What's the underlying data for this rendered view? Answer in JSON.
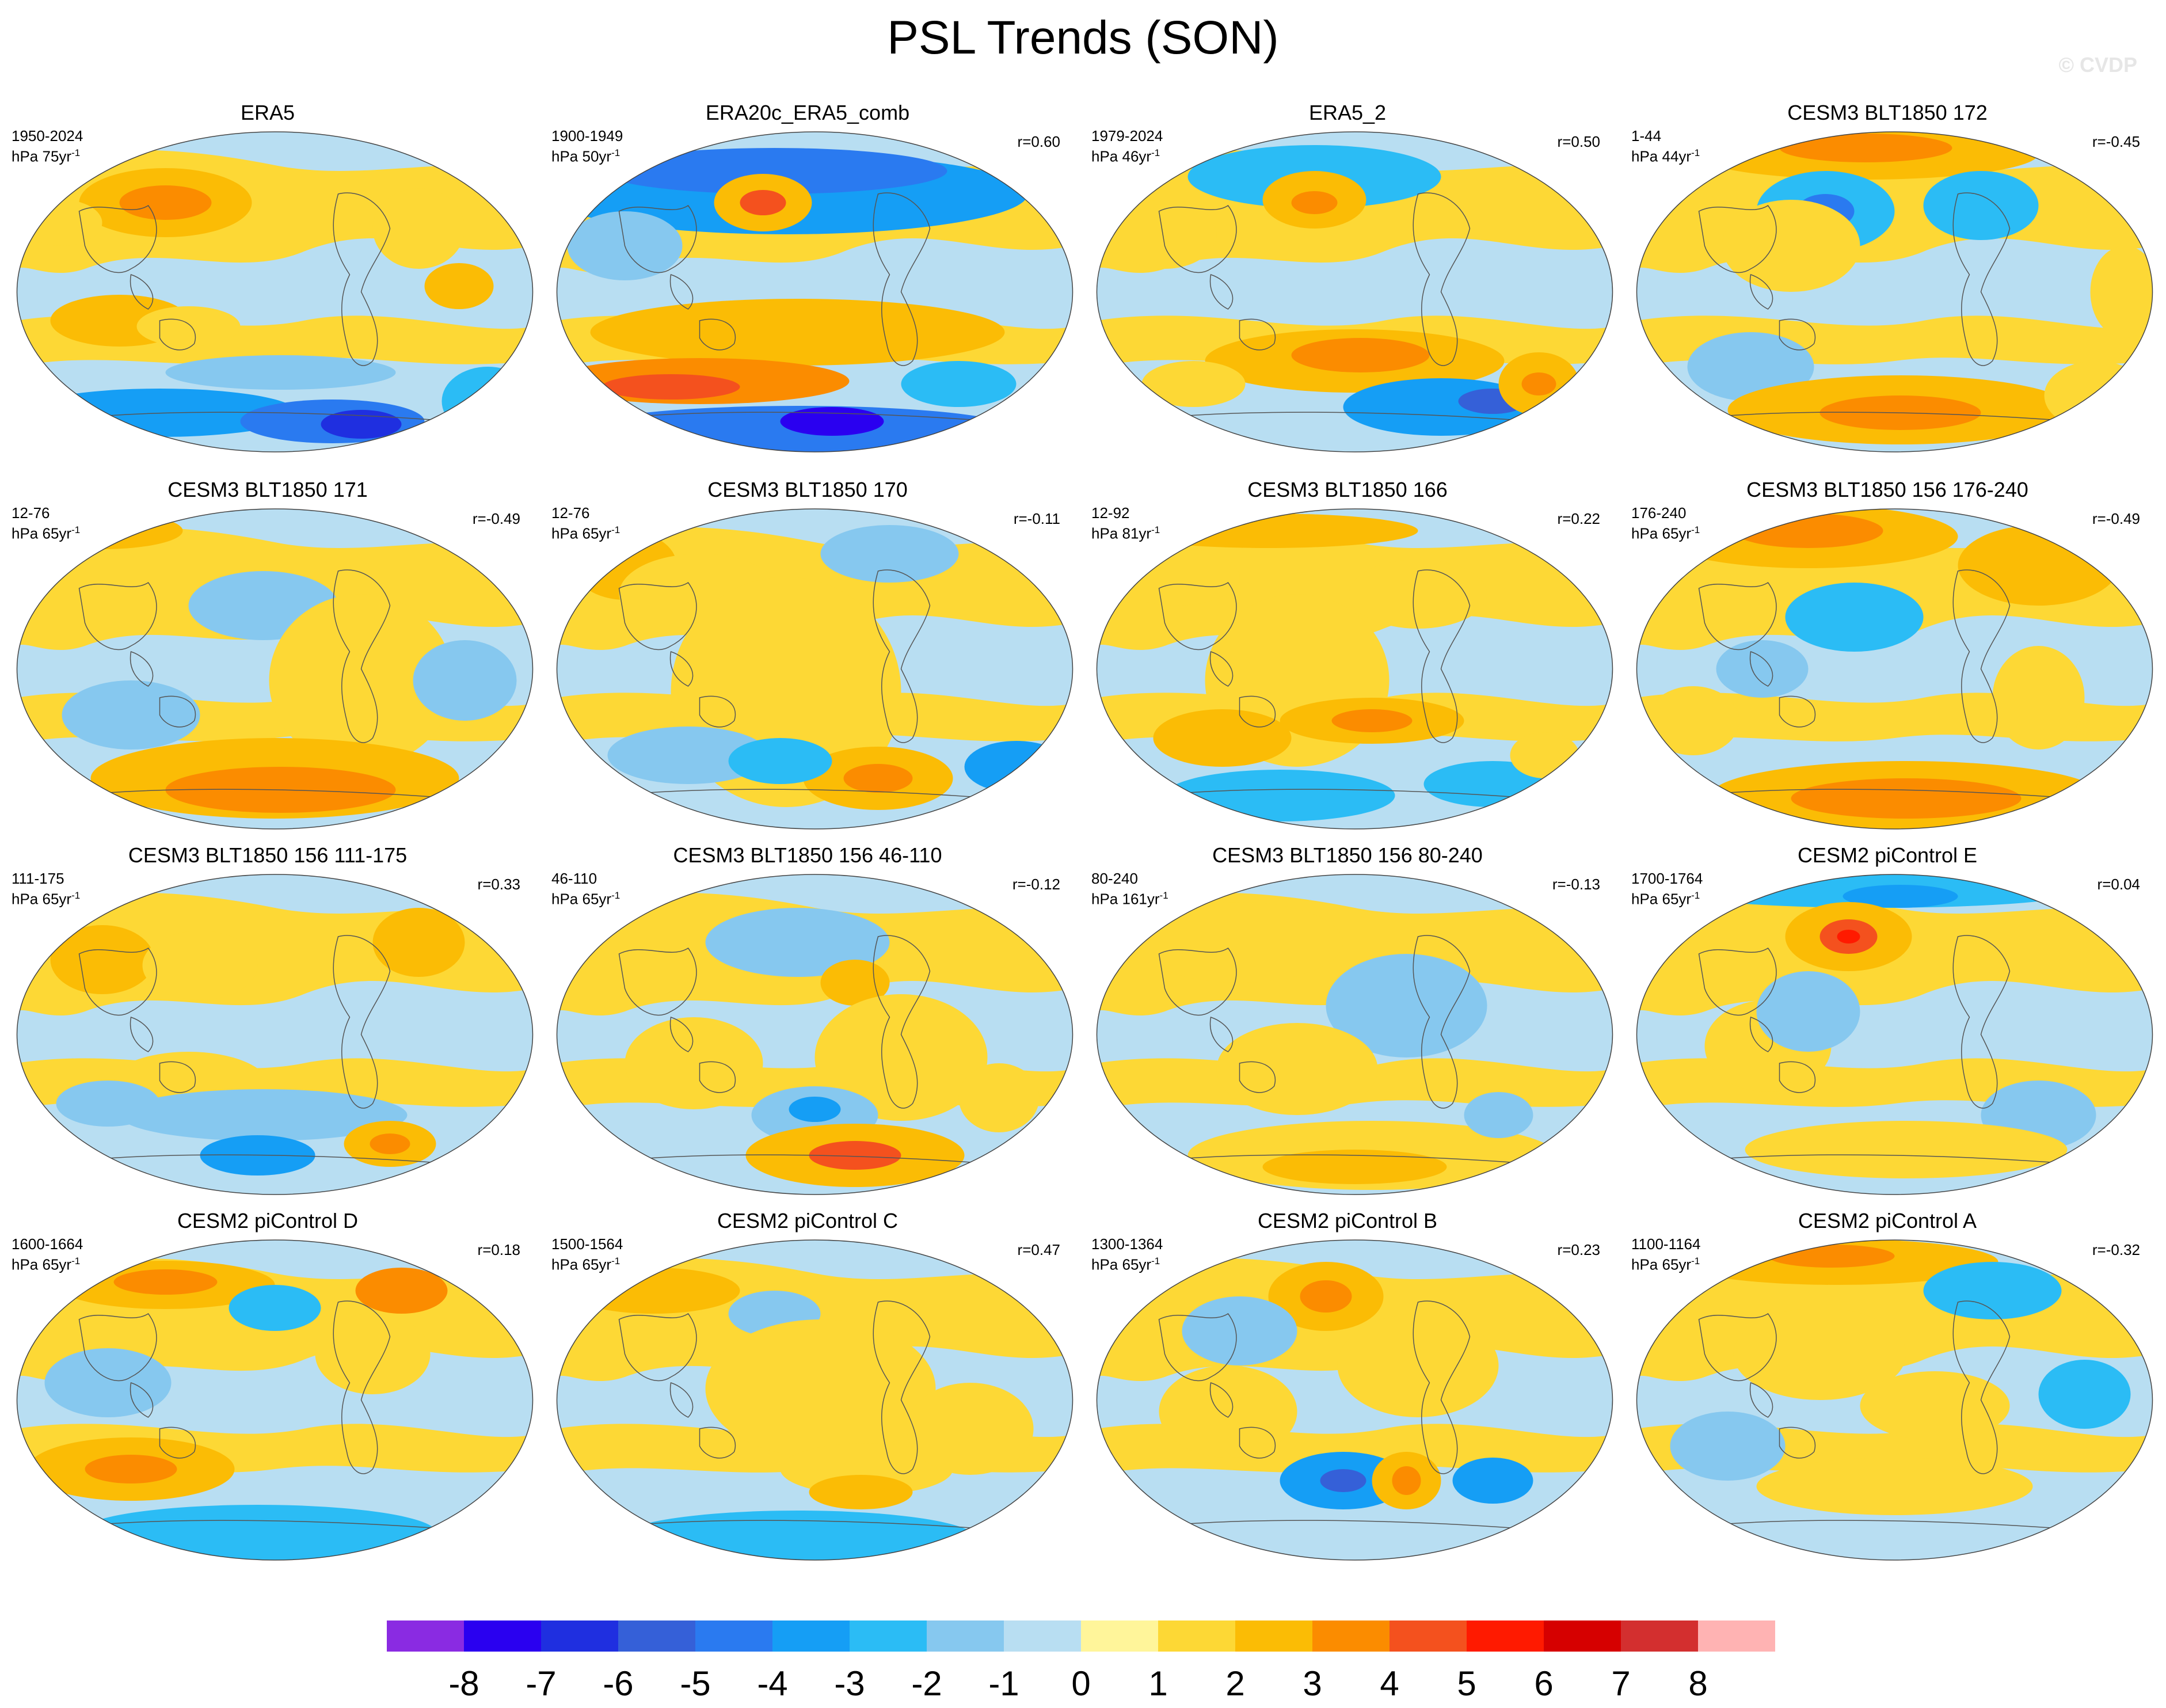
{
  "title": "PSL Trends (SON)",
  "watermark": "© CVDP",
  "panels": [
    {
      "title": "ERA5",
      "years": "1950-2024",
      "units": "hPa 75yr",
      "units_sup": "-1",
      "r": "",
      "pattern": "era5"
    },
    {
      "title": "ERA20c_ERA5_comb",
      "years": "1900-1949",
      "units": "hPa 50yr",
      "units_sup": "-1",
      "r": "r=0.60",
      "pattern": "era20c"
    },
    {
      "title": "ERA5_2",
      "years": "1979-2024",
      "units": "hPa 46yr",
      "units_sup": "-1",
      "r": "r=0.50",
      "pattern": "era5b"
    },
    {
      "title": "CESM3 BLT1850 172",
      "years": "1-44",
      "units": "hPa 44yr",
      "units_sup": "-1",
      "r": "r=-0.45",
      "pattern": "cesm172"
    },
    {
      "title": "CESM3 BLT1850 171",
      "years": "12-76",
      "units": "hPa 65yr",
      "units_sup": "-1",
      "r": "r=-0.49",
      "pattern": "cesm171"
    },
    {
      "title": "CESM3 BLT1850 170",
      "years": "12-76",
      "units": "hPa 65yr",
      "units_sup": "-1",
      "r": "r=-0.11",
      "pattern": "cesm170"
    },
    {
      "title": "CESM3 BLT1850 166",
      "years": "12-92",
      "units": "hPa 81yr",
      "units_sup": "-1",
      "r": "r=0.22",
      "pattern": "cesm166"
    },
    {
      "title": "CESM3 BLT1850 156 176-240",
      "years": "176-240",
      "units": "hPa 65yr",
      "units_sup": "-1",
      "r": "r=-0.49",
      "pattern": "cesm156a"
    },
    {
      "title": "CESM3 BLT1850 156 111-175",
      "years": "111-175",
      "units": "hPa 65yr",
      "units_sup": "-1",
      "r": "r=0.33",
      "pattern": "cesm156b"
    },
    {
      "title": "CESM3 BLT1850 156 46-110",
      "years": "46-110",
      "units": "hPa 65yr",
      "units_sup": "-1",
      "r": "r=-0.12",
      "pattern": "cesm156c"
    },
    {
      "title": "CESM3 BLT1850 156 80-240",
      "years": "80-240",
      "units": "hPa 161yr",
      "units_sup": "-1",
      "r": "r=-0.13",
      "pattern": "cesm156d"
    },
    {
      "title": "CESM2 piControl E",
      "years": "1700-1764",
      "units": "hPa 65yr",
      "units_sup": "-1",
      "r": "r=0.04",
      "pattern": "picE"
    },
    {
      "title": "CESM2 piControl D",
      "years": "1600-1664",
      "units": "hPa 65yr",
      "units_sup": "-1",
      "r": "r=0.18",
      "pattern": "picD"
    },
    {
      "title": "CESM2 piControl C",
      "years": "1500-1564",
      "units": "hPa 65yr",
      "units_sup": "-1",
      "r": "r=0.47",
      "pattern": "picC"
    },
    {
      "title": "CESM2 piControl B",
      "years": "1300-1364",
      "units": "hPa 65yr",
      "units_sup": "-1",
      "r": "r=0.23",
      "pattern": "picB"
    },
    {
      "title": "CESM2 piControl A",
      "years": "1100-1164",
      "units": "hPa 65yr",
      "units_sup": "-1",
      "r": "r=-0.32",
      "pattern": "picA"
    }
  ],
  "colorbar": {
    "labels": [
      "-8",
      "-7",
      "-6",
      "-5",
      "-4",
      "-3",
      "-2",
      "-1",
      "0",
      "1",
      "2",
      "3",
      "4",
      "5",
      "6",
      "7",
      "8"
    ],
    "colors": [
      "#8a2be2",
      "#2a00f0",
      "#1f2fe0",
      "#3560d8",
      "#2a7af0",
      "#159ef5",
      "#2bbcf5",
      "#86c8ef",
      "#b8def2",
      "#fff59a",
      "#fdd835",
      "#fbbc05",
      "#fb8c00",
      "#f4511e",
      "#ff1a00",
      "#d60000",
      "#d32f2f",
      "#ffb3b3"
    ]
  }
}
